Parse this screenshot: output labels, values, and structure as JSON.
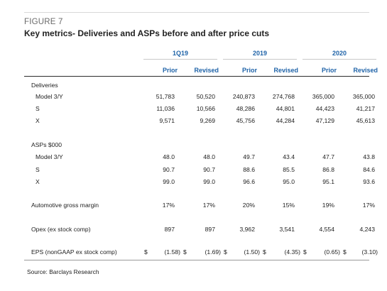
{
  "figure": {
    "label": "FIGURE 7",
    "title": "Key metrics- Deliveries and ASPs before and after price cuts",
    "source": "Source: Barclays Research"
  },
  "periods": [
    "1Q19",
    "2019",
    "2020"
  ],
  "subheaders": [
    "Prior",
    "Revised",
    "Prior",
    "Revised",
    "Prior",
    "Revised"
  ],
  "sections": {
    "deliveries": "Deliveries",
    "asps": "ASPs $000"
  },
  "rows": {
    "del_model3y": {
      "label": "Model 3/Y",
      "values": [
        "51,783",
        "50,520",
        "240,873",
        "274,768",
        "365,000",
        "365,000"
      ]
    },
    "del_s": {
      "label": "S",
      "values": [
        "11,036",
        "10,566",
        "48,286",
        "44,801",
        "44,423",
        "41,217"
      ]
    },
    "del_x": {
      "label": "X",
      "values": [
        "9,571",
        "9,269",
        "45,756",
        "44,284",
        "47,129",
        "45,613"
      ]
    },
    "asp_model3y": {
      "label": "Model 3/Y",
      "values": [
        "48.0",
        "48.0",
        "49.7",
        "43.4",
        "47.7",
        "43.8"
      ]
    },
    "asp_s": {
      "label": "S",
      "values": [
        "90.7",
        "90.7",
        "88.6",
        "85.5",
        "86.8",
        "84.6"
      ]
    },
    "asp_x": {
      "label": "X",
      "values": [
        "99.0",
        "99.0",
        "96.6",
        "95.0",
        "95.1",
        "93.6"
      ]
    },
    "gross_margin": {
      "label": "Automotive gross margin",
      "values": [
        "17%",
        "17%",
        "20%",
        "15%",
        "19%",
        "17%"
      ]
    },
    "opex": {
      "label": "Opex (ex stock comp)",
      "values": [
        "897",
        "897",
        "3,962",
        "3,541",
        "4,554",
        "4,243"
      ]
    },
    "eps": {
      "label": "EPS (nonGAAP ex stock comp)",
      "currency": "$",
      "values": [
        "(1.58)",
        "(1.69)",
        "(1.50)",
        "(4.35)",
        "(0.65)",
        "(3.10)"
      ]
    }
  }
}
